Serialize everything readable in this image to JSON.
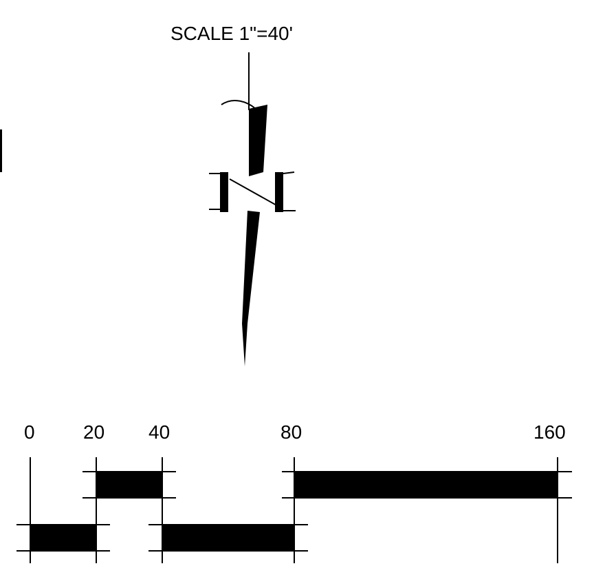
{
  "scale_title": "SCALE  1\"=40'",
  "north_arrow": {
    "icon": "north-arrow-icon"
  },
  "scale_bar": {
    "labels": [
      "0",
      "20",
      "40",
      "80",
      "160"
    ],
    "units": "feet",
    "segments_top_filled": [
      [
        20,
        40
      ],
      [
        80,
        160
      ]
    ],
    "segments_bottom_filled": [
      [
        0,
        20
      ],
      [
        40,
        80
      ]
    ]
  },
  "colors": {
    "ink": "#000000",
    "background": "#ffffff"
  }
}
